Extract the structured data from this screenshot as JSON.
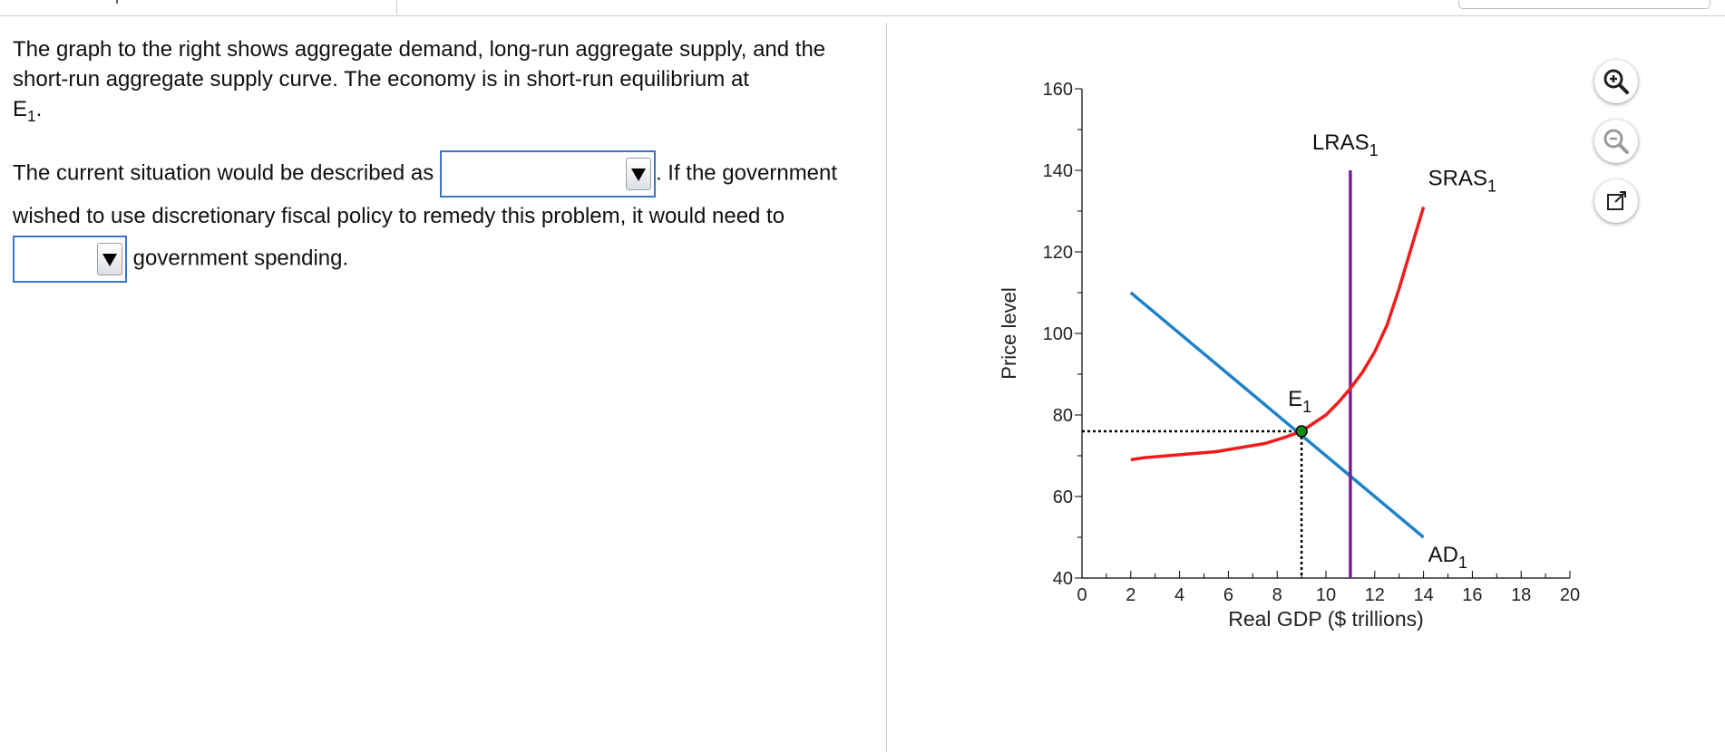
{
  "question": {
    "para1": {
      "text": "The graph to the right shows aggregate demand, long-run aggregate supply, and the short-run aggregate supply curve. The economy is in short-run equilibrium at",
      "eq_base": "E",
      "eq_sub": "1",
      "eq_end": "."
    },
    "para2": {
      "before": "The current situation would be described as",
      "middle": ". If the government wished to use discretionary fiscal policy to remedy this problem, it would need to",
      "after": "government spending."
    },
    "dropdown1": {
      "value": ""
    },
    "dropdown2": {
      "value": ""
    }
  },
  "tools": [
    "zoom-in-icon",
    "zoom-out-icon",
    "popout-icon"
  ],
  "chart_data": {
    "type": "line",
    "xlabel": "Real GDP ($ trillions)",
    "ylabel": "Price level",
    "xlim": [
      0,
      20
    ],
    "ylim": [
      40,
      160
    ],
    "xticks": [
      0,
      2,
      4,
      6,
      8,
      10,
      12,
      14,
      16,
      18,
      20
    ],
    "yticks": [
      40,
      60,
      80,
      100,
      120,
      140,
      160
    ],
    "series": [
      {
        "name": "AD",
        "sub": "1",
        "color": "#1f82c8",
        "x": [
          2,
          14
        ],
        "y": [
          110,
          50
        ]
      },
      {
        "name": "LRAS",
        "sub": "1",
        "color": "#7a1f96",
        "x": [
          11,
          11
        ],
        "y": [
          40,
          140
        ]
      },
      {
        "name": "SRAS",
        "sub": "1",
        "color": "#f21b1b",
        "x": [
          2,
          2.5,
          3.5,
          4.5,
          5.5,
          6.5,
          7.5,
          8.3,
          9,
          9.5,
          10,
          10.5,
          11,
          11.5,
          12,
          12.5,
          13,
          13.5,
          14
        ],
        "y": [
          69,
          69.5,
          70,
          70.5,
          71,
          72,
          73,
          74.5,
          76,
          78,
          80,
          83,
          86.5,
          90.5,
          95.5,
          102,
          111,
          121,
          131
        ]
      }
    ],
    "equilibrium": {
      "label": "E",
      "sub": "1",
      "x": 9,
      "y": 76,
      "color": "#1a8a1a"
    }
  }
}
